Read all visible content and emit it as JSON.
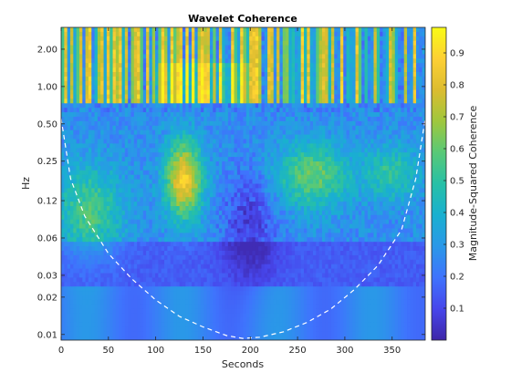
{
  "chart_data": {
    "type": "heatmap",
    "title": "Wavelet Coherence",
    "xlabel": "Seconds",
    "ylabel": "Hz",
    "colorbar_label": "Magnitude-Squared Coherence",
    "xlim": [
      0,
      385
    ],
    "ylim_hz": [
      0.009,
      3.0
    ],
    "y_scale": "log",
    "x_ticks": [
      0,
      50,
      100,
      150,
      200,
      250,
      300,
      350
    ],
    "x_tick_labels": [
      "0",
      "50",
      "100",
      "150",
      "200",
      "250",
      "300",
      "350"
    ],
    "y_ticks": [
      0.01,
      0.02,
      0.03,
      0.06,
      0.12,
      0.25,
      0.5,
      1.0,
      2.0
    ],
    "y_tick_labels": [
      "0.01",
      "0.02",
      "0.03",
      "0.06",
      "0.12",
      "0.25",
      "0.50",
      "1.00",
      "2.00"
    ],
    "colorbar_range": [
      0.0,
      0.98
    ],
    "colorbar_ticks": [
      0.1,
      0.2,
      0.3,
      0.4,
      0.5,
      0.6,
      0.7,
      0.8,
      0.9
    ],
    "colorbar_tick_labels": [
      "0.1",
      "0.2",
      "0.3",
      "0.4",
      "0.5",
      "0.6",
      "0.7",
      "0.8",
      "0.9"
    ],
    "colormap": "parula",
    "cone_of_influence": {
      "style": "dashed",
      "color": "#ffffff",
      "x": [
        0,
        10,
        25,
        50,
        75,
        100,
        125,
        150,
        175,
        192,
        210,
        235,
        260,
        285,
        310,
        335,
        360,
        375,
        385
      ],
      "hz": [
        0.55,
        0.18,
        0.09,
        0.045,
        0.028,
        0.019,
        0.014,
        0.0115,
        0.0098,
        0.0093,
        0.0095,
        0.0105,
        0.0125,
        0.016,
        0.023,
        0.036,
        0.07,
        0.18,
        0.55
      ]
    },
    "regions": [
      {
        "x": [
          0,
          385
        ],
        "hz": [
          0.7,
          3.0
        ],
        "coherence": 0.85,
        "pattern": "vertical-stripes"
      },
      {
        "x": [
          95,
          165
        ],
        "hz": [
          0.12,
          0.35
        ],
        "coherence": 0.8
      },
      {
        "x": [
          230,
          300
        ],
        "hz": [
          0.13,
          0.3
        ],
        "coherence": 0.65
      },
      {
        "x": [
          10,
          60
        ],
        "hz": [
          0.05,
          0.2
        ],
        "coherence": 0.55
      },
      {
        "x": [
          170,
          230
        ],
        "hz": [
          0.03,
          0.12
        ],
        "coherence": 0.08
      },
      {
        "x": [
          0,
          385
        ],
        "hz": [
          0.025,
          0.06
        ],
        "coherence": 0.1
      },
      {
        "x": [
          0,
          385
        ],
        "hz": [
          0.009,
          0.025
        ],
        "coherence": 0.25
      }
    ]
  }
}
